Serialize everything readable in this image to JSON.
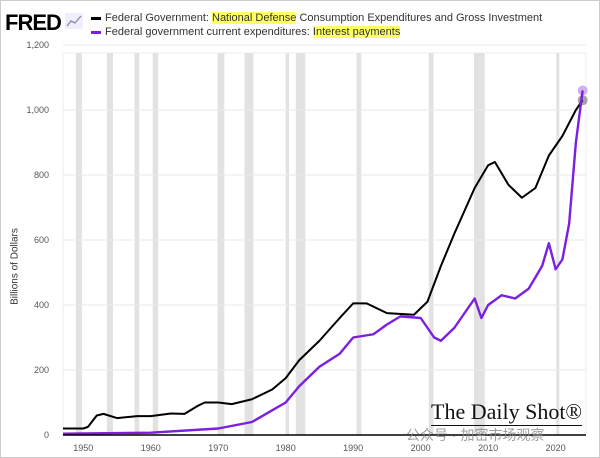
{
  "logo": "FRED",
  "watermarks": {
    "brand": "The Daily Shot®",
    "wechat": "公众号 · 加密市场观察"
  },
  "legend": {
    "s1": {
      "pre": "Federal Government: ",
      "hl": "National Defense",
      "post": " Consumption Expenditures and Gross Investment"
    },
    "s2": {
      "pre": "Federal government current expenditures: ",
      "hl": "Interest payments",
      "post": ""
    }
  },
  "chart_data": {
    "type": "line",
    "title": "",
    "ylabel": "Billions of Dollars",
    "xlim": [
      1947,
      2024.5
    ],
    "ylim": [
      0,
      1200
    ],
    "xticks": [
      1950,
      1960,
      1970,
      1980,
      1990,
      2000,
      2010,
      2020
    ],
    "yticks": [
      0,
      200,
      400,
      600,
      800,
      1000,
      1200
    ],
    "ytick_labels": [
      "0",
      "200",
      "400",
      "600",
      "800",
      "1,000",
      "1,200"
    ],
    "grid": "horizontal",
    "legend_placement": "top",
    "recessions": [
      [
        1948.9,
        1949.8
      ],
      [
        1953.5,
        1954.4
      ],
      [
        1957.6,
        1958.3
      ],
      [
        1960.3,
        1961.1
      ],
      [
        1969.9,
        1970.9
      ],
      [
        1973.9,
        1975.2
      ],
      [
        1980.0,
        1980.5
      ],
      [
        1981.5,
        1982.9
      ],
      [
        1990.5,
        1991.2
      ],
      [
        2001.2,
        2001.9
      ],
      [
        2007.9,
        2009.5
      ],
      [
        2020.1,
        2020.4
      ]
    ],
    "series": [
      {
        "name": "Federal Government: National Defense Consumption Expenditures and Gross Investment",
        "color": "#000000",
        "x": [
          1947,
          1950,
          1950.7,
          1952,
          1953,
          1955,
          1958,
          1960,
          1963,
          1965,
          1967,
          1968,
          1970,
          1972,
          1975,
          1978,
          1980,
          1982,
          1985,
          1988,
          1990,
          1992,
          1995,
          1999,
          2001,
          2003,
          2005,
          2008,
          2010,
          2011,
          2013,
          2015,
          2017,
          2019,
          2021,
          2023,
          2024
        ],
        "y": [
          20,
          20,
          25,
          60,
          65,
          52,
          58,
          58,
          66,
          65,
          90,
          100,
          100,
          95,
          110,
          140,
          175,
          230,
          290,
          360,
          405,
          405,
          375,
          370,
          410,
          520,
          620,
          760,
          830,
          840,
          770,
          730,
          760,
          860,
          920,
          1000,
          1030
        ]
      },
      {
        "name": "Federal government current expenditures: Interest payments",
        "color": "#7b1fe0",
        "x": [
          1947,
          1960,
          1970,
          1975,
          1980,
          1982,
          1985,
          1988,
          1990,
          1993,
          1995,
          1997,
          2000,
          2002,
          2003,
          2005,
          2008,
          2009,
          2010,
          2012,
          2014,
          2016,
          2018,
          2019,
          2020,
          2021,
          2022,
          2023,
          2024
        ],
        "y": [
          4,
          7,
          20,
          40,
          100,
          150,
          210,
          250,
          300,
          310,
          340,
          365,
          360,
          300,
          290,
          330,
          420,
          360,
          400,
          430,
          420,
          450,
          520,
          590,
          510,
          540,
          650,
          900,
          1060
        ]
      }
    ]
  }
}
